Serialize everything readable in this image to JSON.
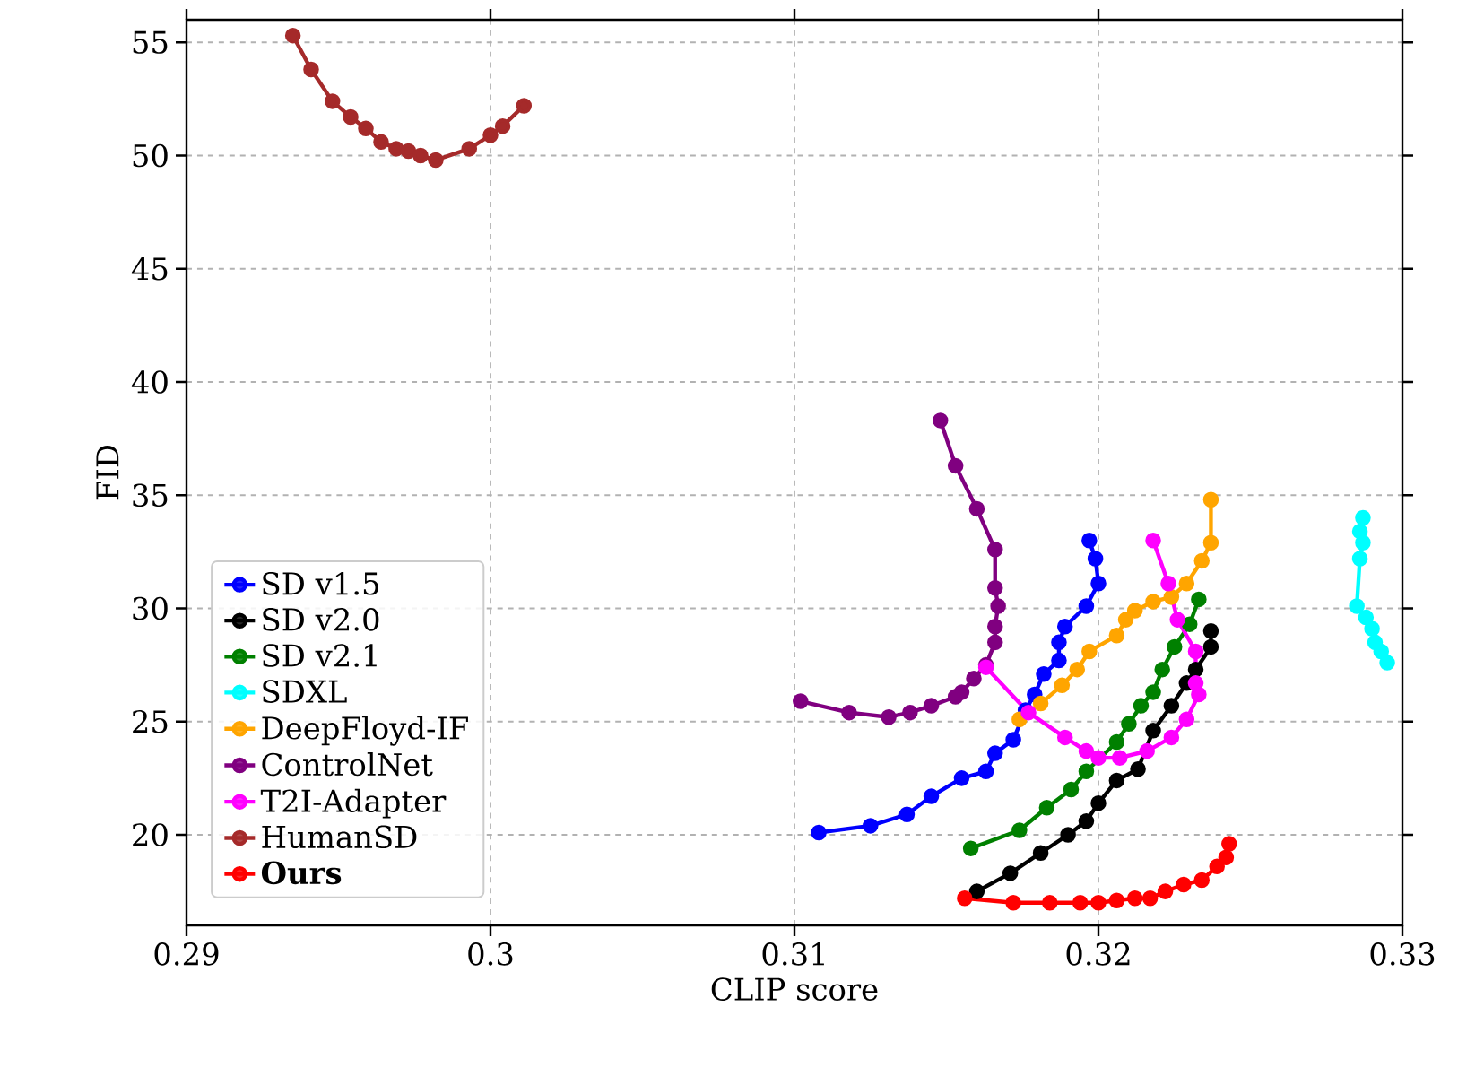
{
  "chart_data": {
    "type": "line",
    "xlabel": "CLIP score",
    "ylabel": "FID",
    "xlim": [
      0.29,
      0.33
    ],
    "ylim": [
      16,
      56
    ],
    "xticks": [
      0.29,
      0.3,
      0.31,
      0.32,
      0.33
    ],
    "yticks": [
      20,
      25,
      30,
      35,
      40,
      45,
      50,
      55
    ],
    "grid": true,
    "legend": "left",
    "marker": "circle",
    "line_style": "solid",
    "series": [
      {
        "name": "SD v1.5",
        "color": "#0000ff",
        "x": [
          0.3197,
          0.3199,
          0.32,
          0.3196,
          0.3189,
          0.3187,
          0.3187,
          0.3182,
          0.3179,
          0.3176,
          0.3172,
          0.3166,
          0.3163,
          0.3155,
          0.3145,
          0.3137,
          0.3125,
          0.3108
        ],
        "values": [
          33.0,
          32.2,
          31.1,
          30.1,
          29.2,
          28.5,
          27.7,
          27.1,
          26.2,
          25.5,
          24.2,
          23.6,
          22.8,
          22.5,
          21.7,
          20.9,
          20.4,
          20.1
        ]
      },
      {
        "name": "SD v2.0",
        "color": "#000000",
        "x": [
          0.3237,
          0.3237,
          0.3232,
          0.3229,
          0.3224,
          0.3218,
          0.3213,
          0.3206,
          0.32,
          0.3196,
          0.319,
          0.3181,
          0.3171,
          0.316
        ],
        "values": [
          29.0,
          28.3,
          27.3,
          26.7,
          25.7,
          24.6,
          22.9,
          22.4,
          21.4,
          20.6,
          20.0,
          19.2,
          18.3,
          17.5
        ]
      },
      {
        "name": "SD v2.1",
        "color": "#008000",
        "x": [
          0.3233,
          0.323,
          0.3225,
          0.3221,
          0.3218,
          0.3214,
          0.321,
          0.3206,
          0.3196,
          0.3191,
          0.3183,
          0.3174,
          0.3158
        ],
        "values": [
          30.4,
          29.3,
          28.3,
          27.3,
          26.3,
          25.7,
          24.9,
          24.1,
          22.8,
          22.0,
          21.2,
          20.2,
          19.4
        ]
      },
      {
        "name": "SDXL",
        "color": "#00ffff",
        "x": [
          0.3287,
          0.3286,
          0.3287,
          0.3286,
          0.3285,
          0.3288,
          0.329,
          0.3291,
          0.3293,
          0.3295
        ],
        "values": [
          34.0,
          33.4,
          32.9,
          32.2,
          30.1,
          29.6,
          29.1,
          28.5,
          28.1,
          27.6
        ]
      },
      {
        "name": "DeepFloyd-IF",
        "color": "#ffa500",
        "x": [
          0.3237,
          0.3237,
          0.3234,
          0.3229,
          0.3224,
          0.3218,
          0.3212,
          0.3209,
          0.3206,
          0.3197,
          0.3193,
          0.3188,
          0.3181,
          0.3174
        ],
        "values": [
          34.8,
          32.9,
          32.1,
          31.1,
          30.5,
          30.3,
          29.9,
          29.5,
          28.8,
          28.1,
          27.3,
          26.6,
          25.8,
          25.1
        ]
      },
      {
        "name": "ControlNet",
        "color": "#800080",
        "x": [
          0.3148,
          0.3153,
          0.316,
          0.3166,
          0.3166,
          0.3167,
          0.3166,
          0.3166,
          0.3163,
          0.3159,
          0.3155,
          0.3153,
          0.3145,
          0.3138,
          0.3131,
          0.3118,
          0.3102
        ],
        "values": [
          38.3,
          36.3,
          34.4,
          32.6,
          30.9,
          30.1,
          29.2,
          28.5,
          27.5,
          26.9,
          26.3,
          26.1,
          25.7,
          25.4,
          25.2,
          25.4,
          25.9
        ]
      },
      {
        "name": "T2I-Adapter",
        "color": "#ff00ff",
        "x": [
          0.3218,
          0.3223,
          0.3226,
          0.3232,
          0.3232,
          0.3233,
          0.3229,
          0.3224,
          0.3216,
          0.3207,
          0.32,
          0.3196,
          0.3189,
          0.3177,
          0.3163
        ],
        "values": [
          33.0,
          31.1,
          29.5,
          28.1,
          26.7,
          26.2,
          25.1,
          24.3,
          23.7,
          23.4,
          23.4,
          23.7,
          24.3,
          25.4,
          27.4
        ]
      },
      {
        "name": "HumanSD",
        "color": "#a52a2a",
        "x": [
          0.2935,
          0.2941,
          0.2948,
          0.2954,
          0.2959,
          0.2964,
          0.2969,
          0.2973,
          0.2977,
          0.2982,
          0.2993,
          0.3,
          0.3004,
          0.3011
        ],
        "values": [
          55.3,
          53.8,
          52.4,
          51.7,
          51.2,
          50.6,
          50.3,
          50.2,
          50.0,
          49.8,
          50.3,
          50.9,
          51.3,
          52.2
        ]
      },
      {
        "name": "**Ours**",
        "color": "#ff0000",
        "x": [
          0.3243,
          0.3242,
          0.3239,
          0.3234,
          0.3228,
          0.3222,
          0.3217,
          0.3212,
          0.3206,
          0.32,
          0.3194,
          0.3184,
          0.3172,
          0.3156
        ],
        "values": [
          19.6,
          19.0,
          18.6,
          18.0,
          17.8,
          17.5,
          17.2,
          17.2,
          17.1,
          17.0,
          17.0,
          17.0,
          17.0,
          17.2
        ]
      }
    ]
  }
}
